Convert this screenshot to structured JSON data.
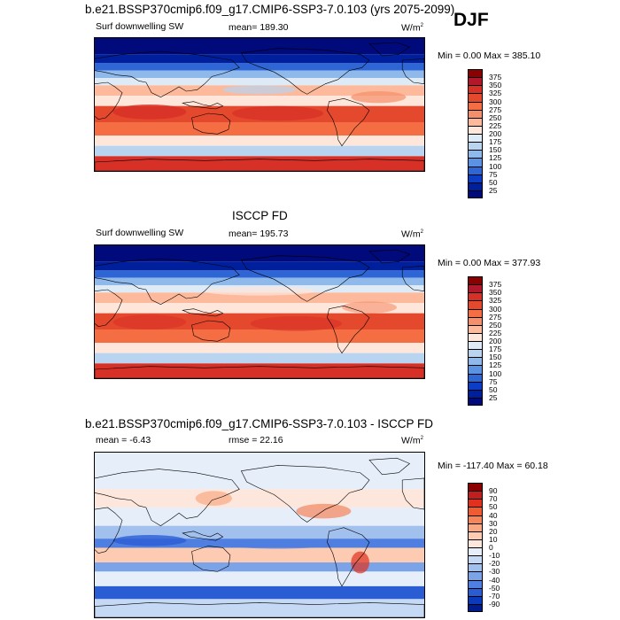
{
  "season": "DJF",
  "chart_data": [
    {
      "type": "heatmap",
      "title": "b.e21.BSSP370cmip6.f09_g17.CMIP6-SSP3-7.0.103 (yrs 2075-2099)",
      "left_label": "Surf downwelling SW",
      "stat_text": "mean= 189.30",
      "units": "W/m",
      "units_sup": "2",
      "minmax": "Min =   0.00 Max = 385.10",
      "colorbar_levels": [
        "375",
        "350",
        "325",
        "300",
        "275",
        "250",
        "225",
        "200",
        "175",
        "150",
        "125",
        "100",
        "75",
        "50",
        "25"
      ],
      "colorbar_colors": [
        "#8b0000",
        "#b2182b",
        "#d73027",
        "#e5492d",
        "#f46d43",
        "#f58e6b",
        "#fdb99b",
        "#fee6da",
        "#deebf7",
        "#b8d4f0",
        "#8fb9ea",
        "#5b93e4",
        "#2e66d6",
        "#0b3ec4",
        "#001f9c",
        "#000a7a"
      ],
      "value_range": [
        0,
        385.1
      ]
    },
    {
      "type": "heatmap",
      "title": "ISCCP FD",
      "left_label": "Surf downwelling SW",
      "stat_text": "mean= 195.73",
      "units": "W/m",
      "units_sup": "2",
      "minmax": "Min =   0.00 Max = 377.93",
      "colorbar_levels": [
        "375",
        "350",
        "325",
        "300",
        "275",
        "250",
        "225",
        "200",
        "175",
        "150",
        "125",
        "100",
        "75",
        "50",
        "25"
      ],
      "colorbar_colors": [
        "#8b0000",
        "#b2182b",
        "#d73027",
        "#e5492d",
        "#f46d43",
        "#f58e6b",
        "#fdb99b",
        "#fee6da",
        "#deebf7",
        "#b8d4f0",
        "#8fb9ea",
        "#5b93e4",
        "#2e66d6",
        "#0b3ec4",
        "#001f9c",
        "#000a7a"
      ],
      "value_range": [
        0,
        377.93
      ]
    },
    {
      "type": "heatmap",
      "title": "b.e21.BSSP370cmip6.f09_g17.CMIP6-SSP3-7.0.103 - ISCCP FD",
      "left_label": "mean =  -6.43",
      "stat_text": "rmse =  22.16",
      "units": "W/m",
      "units_sup": "2",
      "minmax": "Min = -117.40 Max =  60.18",
      "colorbar_levels": [
        "90",
        "70",
        "50",
        "40",
        "30",
        "20",
        "10",
        "0",
        "-10",
        "-20",
        "-30",
        "-40",
        "-50",
        "-70",
        "-90"
      ],
      "colorbar_colors": [
        "#8b0000",
        "#c01f1f",
        "#e0301e",
        "#f05c32",
        "#f6855a",
        "#f8a984",
        "#fccbb2",
        "#fde7dc",
        "#e6eefa",
        "#c6d9f4",
        "#a2c0ee",
        "#7aa3e8",
        "#4f7fe0",
        "#2a5dd4",
        "#0b3bbd",
        "#001c8f"
      ],
      "value_range": [
        -117.4,
        60.18
      ]
    }
  ]
}
